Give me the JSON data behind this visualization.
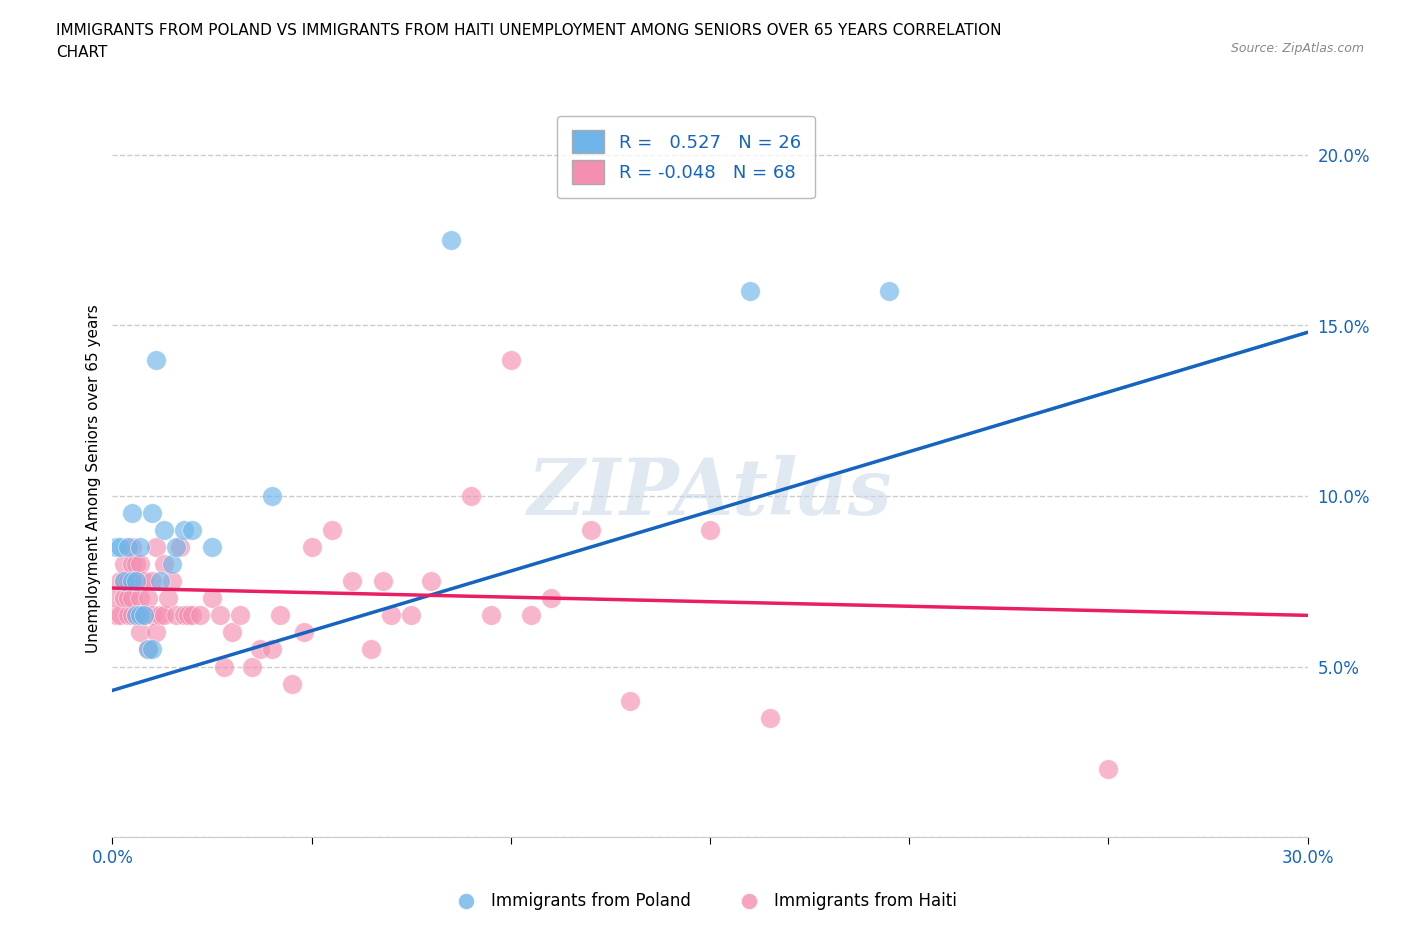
{
  "title": "IMMIGRANTS FROM POLAND VS IMMIGRANTS FROM HAITI UNEMPLOYMENT AMONG SENIORS OVER 65 YEARS CORRELATION\nCHART",
  "source": "Source: ZipAtlas.com",
  "xlabel": "",
  "ylabel": "Unemployment Among Seniors over 65 years",
  "x_min": 0.0,
  "x_max": 0.3,
  "y_min": 0.0,
  "y_max": 0.21,
  "x_ticks": [
    0.0,
    0.05,
    0.1,
    0.15,
    0.2,
    0.25,
    0.3
  ],
  "x_tick_labels": [
    "0.0%",
    "",
    "",
    "",
    "",
    "",
    "30.0%"
  ],
  "y_ticks": [
    0.0,
    0.05,
    0.1,
    0.15,
    0.2
  ],
  "y_tick_labels": [
    "",
    "5.0%",
    "10.0%",
    "15.0%",
    "20.0%"
  ],
  "poland_color": "#6EB4E8",
  "haiti_color": "#F48FB1",
  "poland_line_color": "#1565C0",
  "haiti_line_color": "#E91E63",
  "R_poland": 0.527,
  "N_poland": 26,
  "R_haiti": -0.048,
  "N_haiti": 68,
  "legend_label_poland": "Immigrants from Poland",
  "legend_label_haiti": "Immigrants from Haiti",
  "watermark": "ZIPAtlas",
  "background_color": "#ffffff",
  "grid_color": "#cccccc",
  "poland_line_x": [
    0.0,
    0.3
  ],
  "poland_line_y": [
    0.043,
    0.148
  ],
  "haiti_line_x": [
    0.0,
    0.3
  ],
  "haiti_line_y": [
    0.073,
    0.065
  ],
  "poland_scatter": [
    [
      0.001,
      0.085
    ],
    [
      0.002,
      0.085
    ],
    [
      0.003,
      0.075
    ],
    [
      0.004,
      0.085
    ],
    [
      0.005,
      0.075
    ],
    [
      0.005,
      0.095
    ],
    [
      0.006,
      0.065
    ],
    [
      0.006,
      0.075
    ],
    [
      0.007,
      0.065
    ],
    [
      0.007,
      0.085
    ],
    [
      0.008,
      0.065
    ],
    [
      0.009,
      0.055
    ],
    [
      0.01,
      0.055
    ],
    [
      0.01,
      0.095
    ],
    [
      0.011,
      0.14
    ],
    [
      0.012,
      0.075
    ],
    [
      0.013,
      0.09
    ],
    [
      0.015,
      0.08
    ],
    [
      0.016,
      0.085
    ],
    [
      0.018,
      0.09
    ],
    [
      0.02,
      0.09
    ],
    [
      0.025,
      0.085
    ],
    [
      0.04,
      0.1
    ],
    [
      0.085,
      0.175
    ],
    [
      0.16,
      0.16
    ],
    [
      0.195,
      0.16
    ]
  ],
  "haiti_scatter": [
    [
      0.001,
      0.065
    ],
    [
      0.001,
      0.07
    ],
    [
      0.002,
      0.065
    ],
    [
      0.002,
      0.075
    ],
    [
      0.003,
      0.07
    ],
    [
      0.003,
      0.075
    ],
    [
      0.003,
      0.08
    ],
    [
      0.004,
      0.065
    ],
    [
      0.004,
      0.07
    ],
    [
      0.004,
      0.075
    ],
    [
      0.005,
      0.065
    ],
    [
      0.005,
      0.07
    ],
    [
      0.005,
      0.08
    ],
    [
      0.005,
      0.085
    ],
    [
      0.006,
      0.065
    ],
    [
      0.006,
      0.075
    ],
    [
      0.006,
      0.08
    ],
    [
      0.007,
      0.06
    ],
    [
      0.007,
      0.07
    ],
    [
      0.007,
      0.08
    ],
    [
      0.008,
      0.065
    ],
    [
      0.008,
      0.075
    ],
    [
      0.009,
      0.055
    ],
    [
      0.009,
      0.07
    ],
    [
      0.01,
      0.065
    ],
    [
      0.01,
      0.075
    ],
    [
      0.011,
      0.06
    ],
    [
      0.011,
      0.085
    ],
    [
      0.012,
      0.065
    ],
    [
      0.013,
      0.065
    ],
    [
      0.013,
      0.08
    ],
    [
      0.014,
      0.07
    ],
    [
      0.015,
      0.075
    ],
    [
      0.016,
      0.065
    ],
    [
      0.017,
      0.085
    ],
    [
      0.018,
      0.065
    ],
    [
      0.019,
      0.065
    ],
    [
      0.02,
      0.065
    ],
    [
      0.022,
      0.065
    ],
    [
      0.025,
      0.07
    ],
    [
      0.027,
      0.065
    ],
    [
      0.028,
      0.05
    ],
    [
      0.03,
      0.06
    ],
    [
      0.032,
      0.065
    ],
    [
      0.035,
      0.05
    ],
    [
      0.037,
      0.055
    ],
    [
      0.04,
      0.055
    ],
    [
      0.042,
      0.065
    ],
    [
      0.045,
      0.045
    ],
    [
      0.048,
      0.06
    ],
    [
      0.05,
      0.085
    ],
    [
      0.055,
      0.09
    ],
    [
      0.06,
      0.075
    ],
    [
      0.065,
      0.055
    ],
    [
      0.068,
      0.075
    ],
    [
      0.07,
      0.065
    ],
    [
      0.075,
      0.065
    ],
    [
      0.08,
      0.075
    ],
    [
      0.09,
      0.1
    ],
    [
      0.095,
      0.065
    ],
    [
      0.1,
      0.14
    ],
    [
      0.105,
      0.065
    ],
    [
      0.11,
      0.07
    ],
    [
      0.12,
      0.09
    ],
    [
      0.13,
      0.04
    ],
    [
      0.15,
      0.09
    ],
    [
      0.165,
      0.035
    ],
    [
      0.25,
      0.02
    ]
  ]
}
